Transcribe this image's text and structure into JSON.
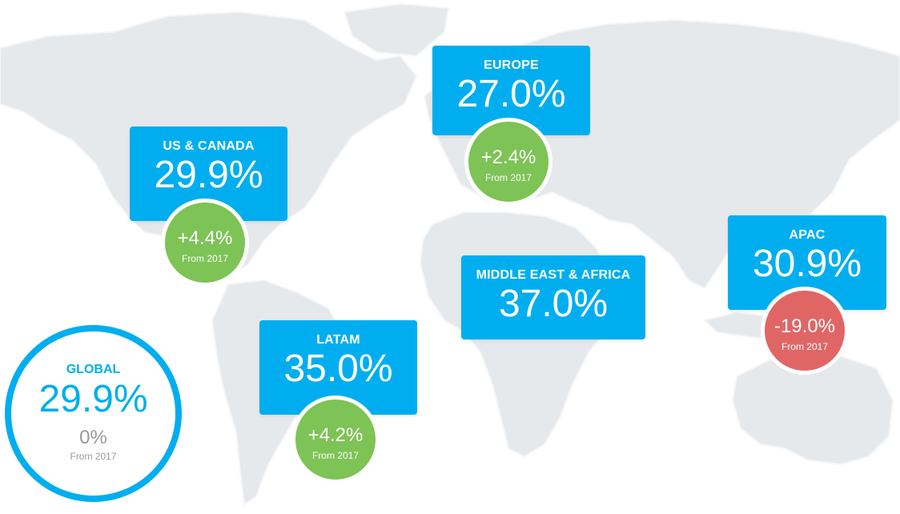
{
  "colors": {
    "card": "#00aeef",
    "positive": "#7dc355",
    "negative": "#e06666",
    "land": "#e6e9ec",
    "neutral_text": "#9a9a9a"
  },
  "chart_data": {
    "type": "map",
    "regions": [
      {
        "id": "us_canada",
        "name": "US & CANADA",
        "value": "29.9%",
        "change": "+4.4%",
        "change_label": "From 2017",
        "trend": "positive"
      },
      {
        "id": "europe",
        "name": "EUROPE",
        "value": "27.0%",
        "change": "+2.4%",
        "change_label": "From 2017",
        "trend": "positive"
      },
      {
        "id": "apac",
        "name": "APAC",
        "value": "30.9%",
        "change": "-19.0%",
        "change_label": "From 2017",
        "trend": "negative"
      },
      {
        "id": "mea",
        "name": "MIDDLE EAST & AFRICA",
        "value": "37.0%"
      },
      {
        "id": "latam",
        "name": "LATAM",
        "value": "35.0%",
        "change": "+4.2%",
        "change_label": "From 2017",
        "trend": "positive"
      }
    ],
    "global": {
      "name": "GLOBAL",
      "value": "29.9%",
      "change": "0%",
      "change_label": "From 2017"
    }
  }
}
